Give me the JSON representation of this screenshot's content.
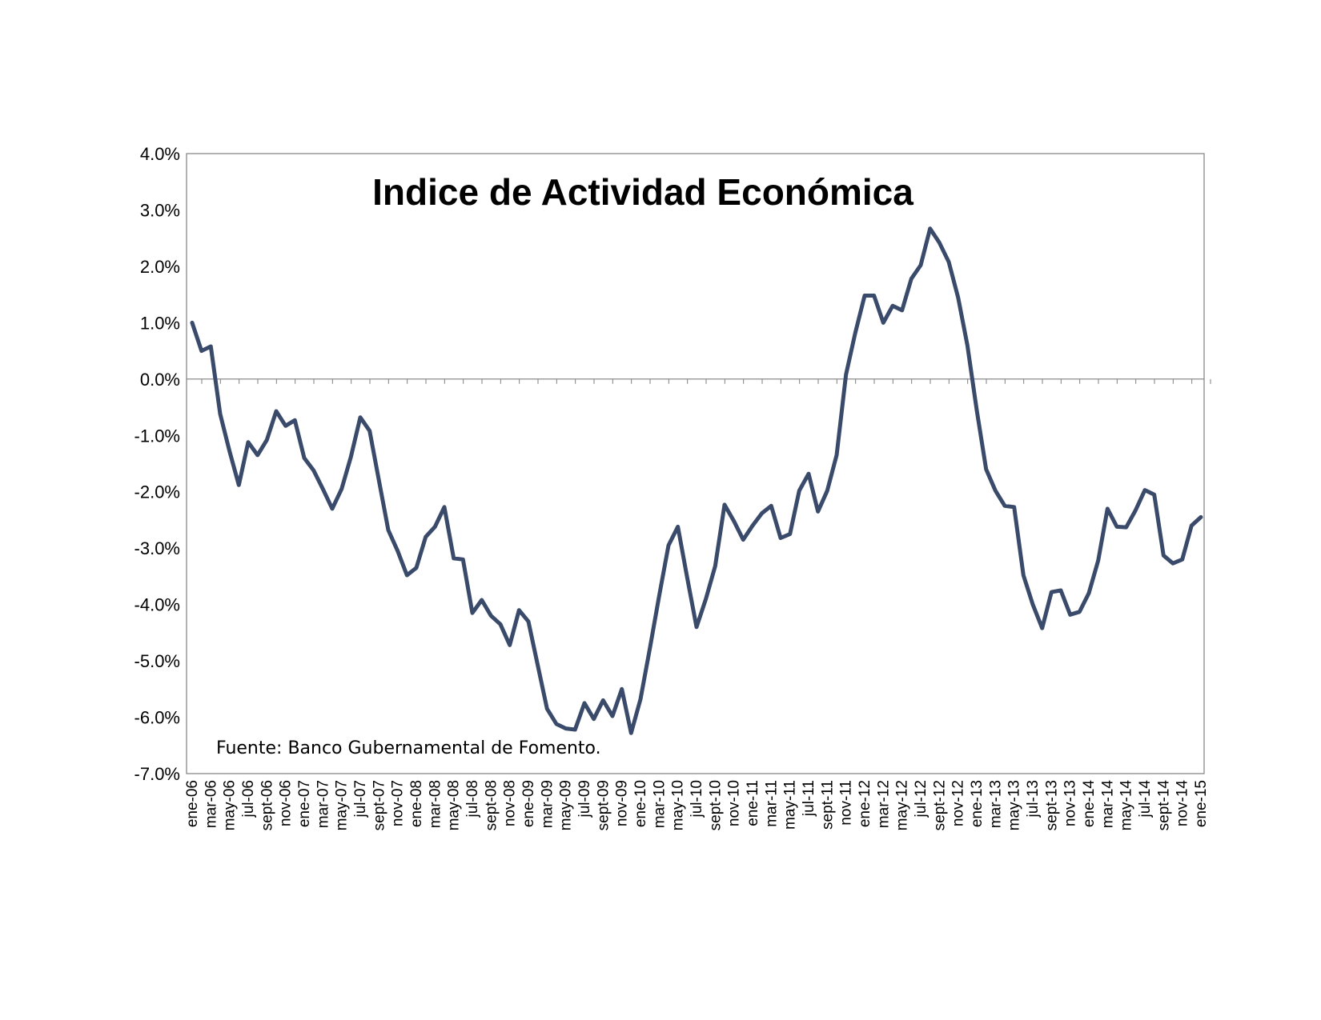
{
  "chart_data": {
    "type": "line",
    "title": "Indice de Actividad Económica",
    "annotation": "Fuente: Banco Gubernamental de Fomento.",
    "xlabel": "",
    "ylabel": "",
    "ylim": [
      -7.0,
      4.0
    ],
    "yticks": [
      "4.0%",
      "3.0%",
      "2.0%",
      "1.0%",
      "0.0%",
      "-1.0%",
      "-2.0%",
      "-3.0%",
      "-4.0%",
      "-5.0%",
      "-6.0%",
      "-7.0%"
    ],
    "ytick_values": [
      4,
      3,
      2,
      1,
      0,
      -1,
      -2,
      -3,
      -4,
      -5,
      -6,
      -7
    ],
    "xtick_labels": [
      "ene-06",
      "mar-06",
      "may-06",
      "jul-06",
      "sept-06",
      "nov-06",
      "ene-07",
      "mar-07",
      "may-07",
      "jul-07",
      "sept-07",
      "nov-07",
      "ene-08",
      "mar-08",
      "may-08",
      "jul-08",
      "sept-08",
      "nov-08",
      "ene-09",
      "mar-09",
      "may-09",
      "jul-09",
      "sept-09",
      "nov-09",
      "ene-10",
      "mar-10",
      "may-10",
      "jul-10",
      "sept-10",
      "nov-10",
      "ene-11",
      "mar-11",
      "may-11",
      "jul-11",
      "sept-11",
      "nov-11",
      "ene-12",
      "mar-12",
      "may-12",
      "jul-12",
      "sept-12",
      "nov-12",
      "ene-13",
      "mar-13",
      "may-13",
      "jul-13",
      "sept-13",
      "nov-13",
      "ene-14",
      "mar-14",
      "may-14",
      "jul-14",
      "sept-14",
      "nov-14",
      "ene-15"
    ],
    "grid": false,
    "line_color": "#3a4a6b",
    "series": [
      {
        "values": [
          1.0,
          0.5,
          0.58,
          -0.62,
          -1.28,
          -1.88,
          -1.12,
          -1.35,
          -1.08,
          -0.57,
          -0.83,
          -0.73,
          -1.4,
          -1.62,
          -1.95,
          -2.3,
          -1.95,
          -1.38,
          -0.68,
          -0.92,
          -1.8,
          -2.68,
          -3.05,
          -3.48,
          -3.35,
          -2.8,
          -2.62,
          -2.27,
          -3.18,
          -3.2,
          -4.15,
          -3.92,
          -4.2,
          -4.35,
          -4.72,
          -4.1,
          -4.3,
          -5.08,
          -5.85,
          -6.12,
          -6.2,
          -6.22,
          -5.75,
          -6.03,
          -5.7,
          -5.98,
          -5.5,
          -6.28,
          -5.68,
          -4.78,
          -3.85,
          -2.95,
          -2.62,
          -3.52,
          -4.4,
          -3.9,
          -3.32,
          -2.23,
          -2.52,
          -2.85,
          -2.6,
          -2.38,
          -2.25,
          -2.82,
          -2.75,
          -1.98,
          -1.68,
          -2.35,
          -1.98,
          -1.35,
          0.08,
          0.82,
          1.48,
          1.48,
          1.0,
          1.3,
          1.22,
          1.78,
          2.02,
          2.67,
          2.42,
          2.08,
          1.45,
          0.6,
          -0.55,
          -1.6,
          -1.98,
          -2.25,
          -2.27,
          -3.48,
          -4.0,
          -4.42,
          -3.78,
          -3.75,
          -4.18,
          -4.13,
          -3.8,
          -3.22,
          -2.3,
          -2.62,
          -2.63,
          -2.33,
          -1.97,
          -2.05,
          -3.13,
          -3.27,
          -3.2,
          -2.6,
          -2.45
        ]
      }
    ]
  }
}
